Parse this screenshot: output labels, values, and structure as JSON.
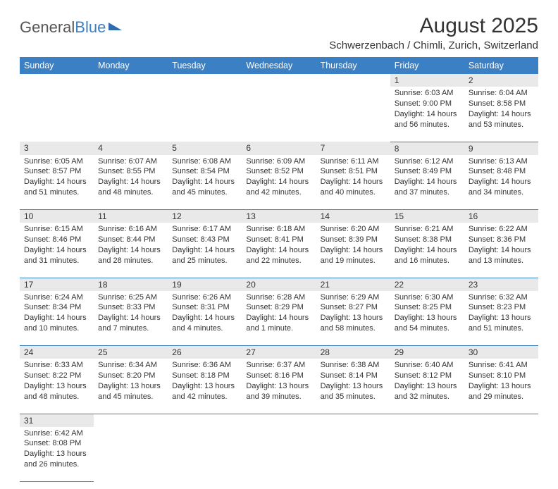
{
  "logo": {
    "text1": "General",
    "text2": "Blue",
    "triangle_color": "#2e6bb0"
  },
  "title": "August 2025",
  "subtitle": "Schwerzenbach / Chimli, Zurich, Switzerland",
  "colors": {
    "header_bg": "#3b7fc4",
    "header_fg": "#ffffff",
    "daynum_bg": "#e9e9e9",
    "rule": "#3b7fc4"
  },
  "fonts": {
    "title_size": 30,
    "subtitle_size": 15,
    "header_size": 12.5,
    "cell_size": 11
  },
  "weekdays": [
    "Sunday",
    "Monday",
    "Tuesday",
    "Wednesday",
    "Thursday",
    "Friday",
    "Saturday"
  ],
  "weeks": [
    [
      null,
      null,
      null,
      null,
      null,
      {
        "n": "1",
        "sr": "6:03 AM",
        "ss": "9:00 PM",
        "dl": "14 hours and 56 minutes."
      },
      {
        "n": "2",
        "sr": "6:04 AM",
        "ss": "8:58 PM",
        "dl": "14 hours and 53 minutes."
      }
    ],
    [
      {
        "n": "3",
        "sr": "6:05 AM",
        "ss": "8:57 PM",
        "dl": "14 hours and 51 minutes."
      },
      {
        "n": "4",
        "sr": "6:07 AM",
        "ss": "8:55 PM",
        "dl": "14 hours and 48 minutes."
      },
      {
        "n": "5",
        "sr": "6:08 AM",
        "ss": "8:54 PM",
        "dl": "14 hours and 45 minutes."
      },
      {
        "n": "6",
        "sr": "6:09 AM",
        "ss": "8:52 PM",
        "dl": "14 hours and 42 minutes."
      },
      {
        "n": "7",
        "sr": "6:11 AM",
        "ss": "8:51 PM",
        "dl": "14 hours and 40 minutes."
      },
      {
        "n": "8",
        "sr": "6:12 AM",
        "ss": "8:49 PM",
        "dl": "14 hours and 37 minutes."
      },
      {
        "n": "9",
        "sr": "6:13 AM",
        "ss": "8:48 PM",
        "dl": "14 hours and 34 minutes."
      }
    ],
    [
      {
        "n": "10",
        "sr": "6:15 AM",
        "ss": "8:46 PM",
        "dl": "14 hours and 31 minutes."
      },
      {
        "n": "11",
        "sr": "6:16 AM",
        "ss": "8:44 PM",
        "dl": "14 hours and 28 minutes."
      },
      {
        "n": "12",
        "sr": "6:17 AM",
        "ss": "8:43 PM",
        "dl": "14 hours and 25 minutes."
      },
      {
        "n": "13",
        "sr": "6:18 AM",
        "ss": "8:41 PM",
        "dl": "14 hours and 22 minutes."
      },
      {
        "n": "14",
        "sr": "6:20 AM",
        "ss": "8:39 PM",
        "dl": "14 hours and 19 minutes."
      },
      {
        "n": "15",
        "sr": "6:21 AM",
        "ss": "8:38 PM",
        "dl": "14 hours and 16 minutes."
      },
      {
        "n": "16",
        "sr": "6:22 AM",
        "ss": "8:36 PM",
        "dl": "14 hours and 13 minutes."
      }
    ],
    [
      {
        "n": "17",
        "sr": "6:24 AM",
        "ss": "8:34 PM",
        "dl": "14 hours and 10 minutes."
      },
      {
        "n": "18",
        "sr": "6:25 AM",
        "ss": "8:33 PM",
        "dl": "14 hours and 7 minutes."
      },
      {
        "n": "19",
        "sr": "6:26 AM",
        "ss": "8:31 PM",
        "dl": "14 hours and 4 minutes."
      },
      {
        "n": "20",
        "sr": "6:28 AM",
        "ss": "8:29 PM",
        "dl": "14 hours and 1 minute."
      },
      {
        "n": "21",
        "sr": "6:29 AM",
        "ss": "8:27 PM",
        "dl": "13 hours and 58 minutes."
      },
      {
        "n": "22",
        "sr": "6:30 AM",
        "ss": "8:25 PM",
        "dl": "13 hours and 54 minutes."
      },
      {
        "n": "23",
        "sr": "6:32 AM",
        "ss": "8:23 PM",
        "dl": "13 hours and 51 minutes."
      }
    ],
    [
      {
        "n": "24",
        "sr": "6:33 AM",
        "ss": "8:22 PM",
        "dl": "13 hours and 48 minutes."
      },
      {
        "n": "25",
        "sr": "6:34 AM",
        "ss": "8:20 PM",
        "dl": "13 hours and 45 minutes."
      },
      {
        "n": "26",
        "sr": "6:36 AM",
        "ss": "8:18 PM",
        "dl": "13 hours and 42 minutes."
      },
      {
        "n": "27",
        "sr": "6:37 AM",
        "ss": "8:16 PM",
        "dl": "13 hours and 39 minutes."
      },
      {
        "n": "28",
        "sr": "6:38 AM",
        "ss": "8:14 PM",
        "dl": "13 hours and 35 minutes."
      },
      {
        "n": "29",
        "sr": "6:40 AM",
        "ss": "8:12 PM",
        "dl": "13 hours and 32 minutes."
      },
      {
        "n": "30",
        "sr": "6:41 AM",
        "ss": "8:10 PM",
        "dl": "13 hours and 29 minutes."
      }
    ],
    [
      {
        "n": "31",
        "sr": "6:42 AM",
        "ss": "8:08 PM",
        "dl": "13 hours and 26 minutes."
      },
      null,
      null,
      null,
      null,
      null,
      null
    ]
  ],
  "labels": {
    "sunrise": "Sunrise:",
    "sunset": "Sunset:",
    "daylight": "Daylight:"
  }
}
